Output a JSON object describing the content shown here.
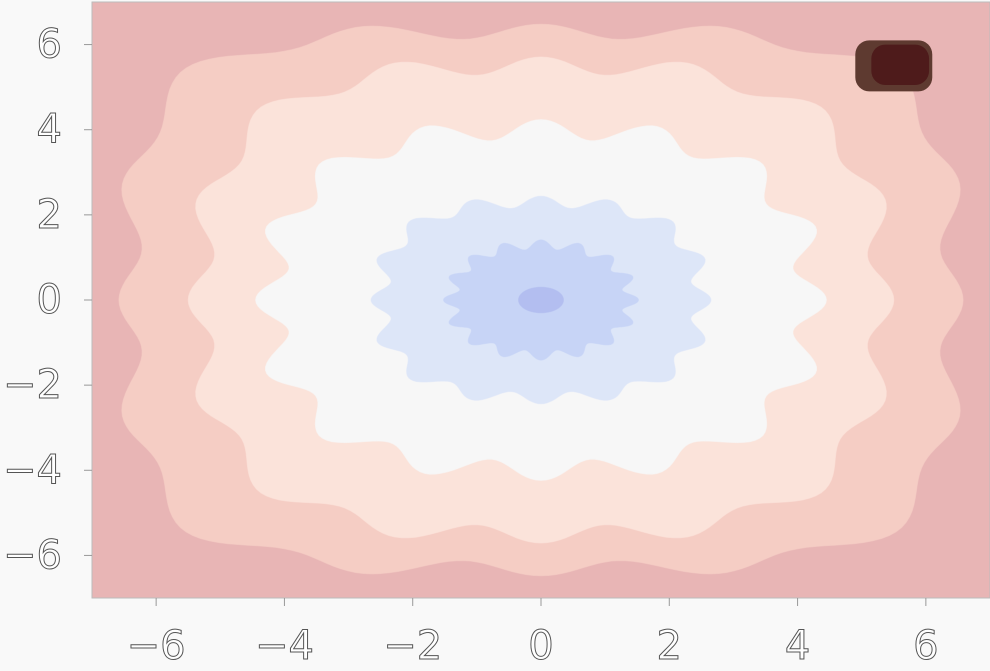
{
  "chart_data": {
    "type": "contour",
    "xlim": [
      -7,
      7
    ],
    "ylim": [
      -7,
      7
    ],
    "xticks": [
      {
        "value": -6,
        "label": "−6"
      },
      {
        "value": -4,
        "label": "−4"
      },
      {
        "value": -2,
        "label": "−2"
      },
      0,
      2,
      4,
      6
    ],
    "yticks": [
      {
        "value": -6,
        "label": "−6"
      },
      {
        "value": -4,
        "label": "−4"
      },
      {
        "value": -2,
        "label": "−2"
      },
      0,
      2,
      4,
      6
    ],
    "colors": [
      "#e8b5b5",
      "#f5cdc4",
      "#fbe3da",
      "#f7f7f7",
      "#dde6f8",
      "#c7d4f6",
      "#b3bef0"
    ],
    "peak_color": "#4e1b1b"
  }
}
